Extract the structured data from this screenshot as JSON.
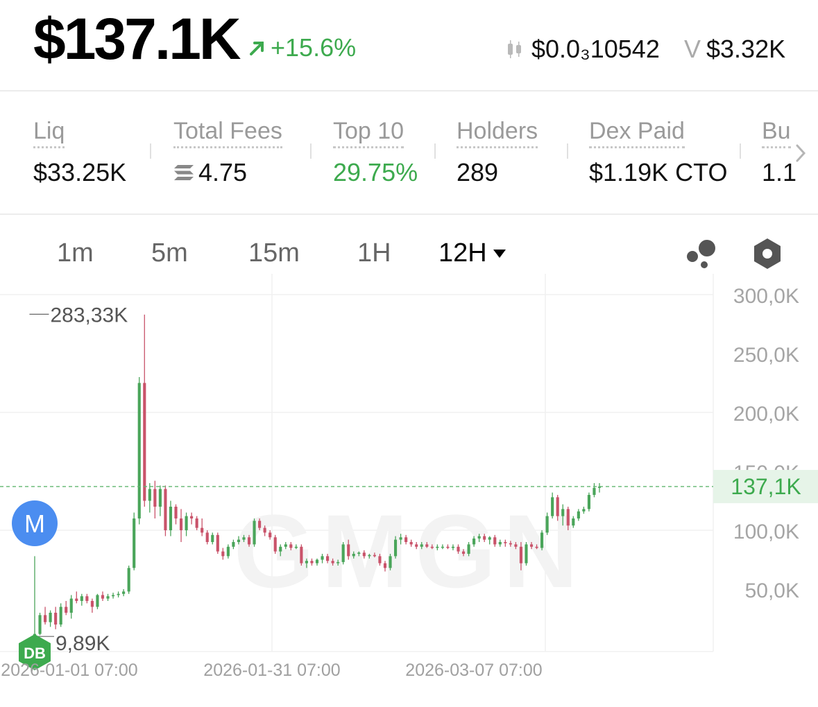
{
  "header": {
    "market_cap": "$137.1K",
    "change": "+15.6%",
    "token_price": "$0.0₃10542",
    "volume_label": "V",
    "volume": "$3.32K"
  },
  "stats": {
    "items": [
      {
        "label": "Liq",
        "value": "$33.25K"
      },
      {
        "label": "Total Fees",
        "value": "4.75"
      },
      {
        "label": "Top 10",
        "value": "29.75%"
      },
      {
        "label": "Holders",
        "value": "289"
      },
      {
        "label": "Dex Paid",
        "value": "$1.19K CTO"
      },
      {
        "label": "Bu",
        "value": "1.1"
      }
    ]
  },
  "timeframes": [
    "1m",
    "5m",
    "15m",
    "1H",
    "12H"
  ],
  "active_timeframe": "12H",
  "colors": {
    "up": "#4aa55a",
    "down": "#c9536a",
    "accent_green": "#3daa4e"
  },
  "markers": {
    "m": "M",
    "db": "DB"
  },
  "chart_data": {
    "type": "candlestick",
    "y_ticks": [
      "300,0K",
      "250,0K",
      "200,0K",
      "150,0K",
      "100,0K",
      "50,0K"
    ],
    "ylim": [
      0,
      320000
    ],
    "current_label": "137,1K",
    "current_value": 137100,
    "high_label": "283,33K",
    "high_value": 283330,
    "low_label": "9,89K",
    "low_value": 9890,
    "x_labels": [
      "2026-01-01 07:00",
      "2026-01-31 07:00",
      "2026-03-07 07:00"
    ],
    "watermark": "GMGN",
    "candles": [
      [
        12,
        78,
        10,
        12
      ],
      [
        12,
        30,
        11,
        28
      ],
      [
        28,
        35,
        20,
        22
      ],
      [
        22,
        32,
        18,
        30
      ],
      [
        30,
        35,
        16,
        20
      ],
      [
        20,
        38,
        18,
        35
      ],
      [
        35,
        40,
        28,
        30
      ],
      [
        30,
        45,
        25,
        42
      ],
      [
        42,
        48,
        38,
        40
      ],
      [
        40,
        46,
        36,
        44
      ],
      [
        44,
        46,
        38,
        40
      ],
      [
        40,
        42,
        30,
        35
      ],
      [
        35,
        46,
        33,
        45
      ],
      [
        45,
        48,
        40,
        42
      ],
      [
        42,
        46,
        40,
        44
      ],
      [
        44,
        47,
        42,
        45
      ],
      [
        45,
        48,
        43,
        46
      ],
      [
        46,
        50,
        44,
        48
      ],
      [
        48,
        70,
        46,
        68
      ],
      [
        68,
        115,
        66,
        110
      ],
      [
        110,
        230,
        105,
        225
      ],
      [
        225,
        283,
        120,
        125
      ],
      [
        125,
        140,
        115,
        135
      ],
      [
        135,
        142,
        110,
        120
      ],
      [
        120,
        138,
        112,
        135
      ],
      [
        135,
        138,
        95,
        100
      ],
      [
        100,
        125,
        95,
        120
      ],
      [
        120,
        122,
        105,
        110
      ],
      [
        110,
        118,
        90,
        100
      ],
      [
        100,
        115,
        95,
        112
      ],
      [
        112,
        115,
        105,
        110
      ],
      [
        110,
        112,
        100,
        102
      ],
      [
        102,
        110,
        95,
        98
      ],
      [
        98,
        100,
        88,
        90
      ],
      [
        90,
        98,
        88,
        96
      ],
      [
        96,
        98,
        80,
        82
      ],
      [
        82,
        85,
        75,
        78
      ],
      [
        78,
        88,
        76,
        86
      ],
      [
        86,
        92,
        84,
        90
      ],
      [
        90,
        95,
        88,
        92
      ],
      [
        92,
        96,
        90,
        94
      ],
      [
        94,
        96,
        86,
        88
      ],
      [
        88,
        110,
        86,
        108
      ],
      [
        108,
        110,
        100,
        102
      ],
      [
        102,
        104,
        95,
        98
      ],
      [
        98,
        100,
        92,
        94
      ],
      [
        94,
        96,
        80,
        82
      ],
      [
        82,
        88,
        78,
        86
      ],
      [
        86,
        90,
        84,
        88
      ],
      [
        88,
        90,
        83,
        85
      ],
      [
        85,
        88,
        84,
        86
      ],
      [
        86,
        88,
        70,
        72
      ],
      [
        72,
        76,
        68,
        74
      ],
      [
        74,
        76,
        70,
        72
      ],
      [
        72,
        76,
        70,
        75
      ],
      [
        75,
        80,
        72,
        78
      ],
      [
        78,
        80,
        72,
        74
      ],
      [
        74,
        76,
        70,
        72
      ],
      [
        72,
        75,
        70,
        73
      ],
      [
        73,
        90,
        71,
        88
      ],
      [
        88,
        92,
        75,
        78
      ],
      [
        78,
        82,
        76,
        80
      ],
      [
        80,
        82,
        78,
        81
      ],
      [
        81,
        83,
        76,
        78
      ],
      [
        78,
        80,
        76,
        79
      ],
      [
        79,
        81,
        77,
        78
      ],
      [
        78,
        80,
        70,
        72
      ],
      [
        72,
        74,
        65,
        68
      ],
      [
        68,
        80,
        66,
        78
      ],
      [
        78,
        95,
        76,
        92
      ],
      [
        92,
        97,
        88,
        94
      ],
      [
        94,
        96,
        88,
        90
      ],
      [
        90,
        92,
        86,
        88
      ],
      [
        88,
        90,
        84,
        86
      ],
      [
        86,
        90,
        84,
        88
      ],
      [
        88,
        90,
        85,
        86
      ],
      [
        86,
        88,
        84,
        85
      ],
      [
        85,
        88,
        83,
        86
      ],
      [
        86,
        88,
        84,
        86
      ],
      [
        86,
        88,
        84,
        85
      ],
      [
        85,
        88,
        83,
        86
      ],
      [
        86,
        88,
        80,
        82
      ],
      [
        82,
        84,
        78,
        80
      ],
      [
        80,
        90,
        78,
        88
      ],
      [
        88,
        95,
        86,
        93
      ],
      [
        93,
        97,
        90,
        95
      ],
      [
        95,
        97,
        90,
        92
      ],
      [
        92,
        95,
        88,
        94
      ],
      [
        94,
        96,
        86,
        88
      ],
      [
        88,
        92,
        86,
        90
      ],
      [
        90,
        92,
        86,
        89
      ],
      [
        89,
        91,
        86,
        88
      ],
      [
        88,
        90,
        84,
        86
      ],
      [
        86,
        90,
        66,
        72
      ],
      [
        72,
        90,
        70,
        88
      ],
      [
        88,
        90,
        84,
        86
      ],
      [
        86,
        88,
        84,
        85
      ],
      [
        85,
        100,
        83,
        98
      ],
      [
        98,
        115,
        96,
        112
      ],
      [
        112,
        132,
        110,
        128
      ],
      [
        128,
        130,
        108,
        112
      ],
      [
        112,
        122,
        104,
        118
      ],
      [
        118,
        120,
        100,
        104
      ],
      [
        104,
        112,
        102,
        110
      ],
      [
        110,
        118,
        108,
        116
      ],
      [
        116,
        120,
        114,
        118
      ],
      [
        118,
        132,
        116,
        130
      ],
      [
        130,
        140,
        128,
        136
      ],
      [
        136,
        140,
        132,
        137
      ]
    ]
  }
}
